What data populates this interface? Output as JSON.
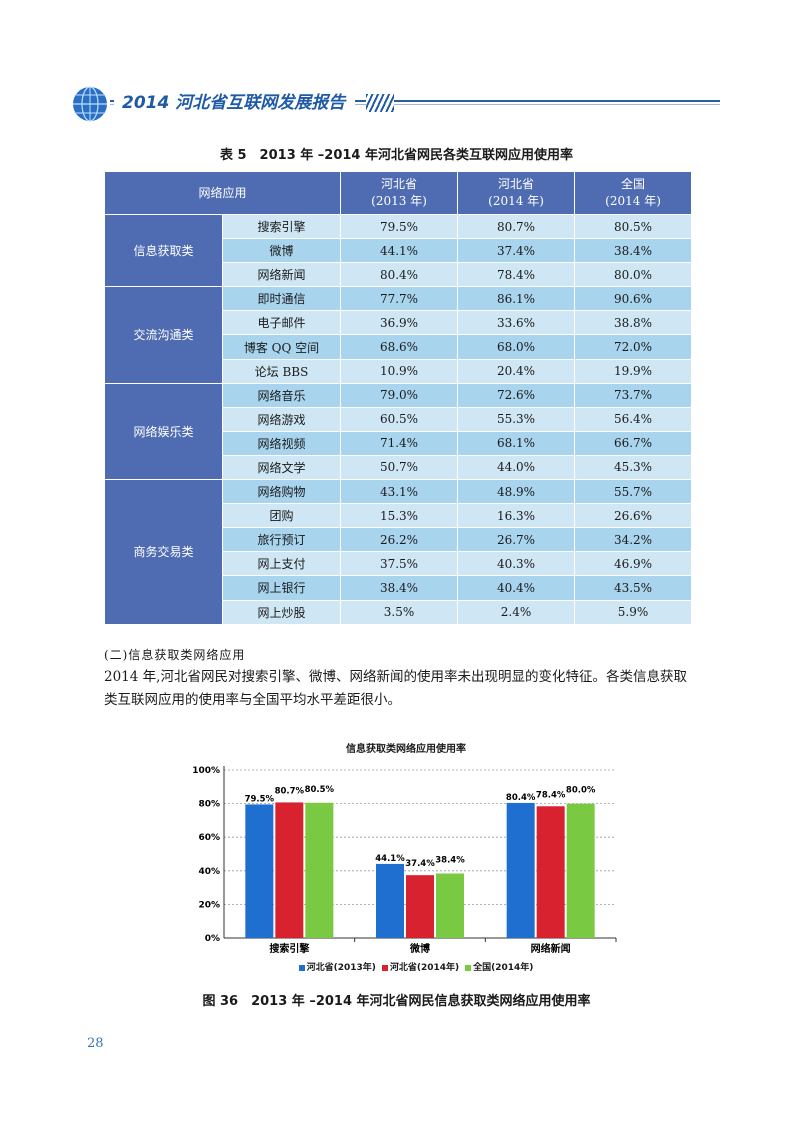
{
  "header": {
    "title": "2014 河北省互联网发展报告"
  },
  "table": {
    "caption": "表 5　2013 年 –2014 年河北省网民各类互联网应用使用率",
    "headers": {
      "app": "网络应用",
      "col1_line1": "河北省",
      "col1_line2": "(2013 年)",
      "col2_line1": "河北省",
      "col2_line2": "(2014 年)",
      "col3_line1": "全国",
      "col3_line2": "(2014 年)"
    },
    "groups": [
      {
        "category": "信息获取类",
        "rows": [
          {
            "app": "搜索引擎",
            "v2013": "79.5%",
            "v2014": "80.7%",
            "nat": "80.5%"
          },
          {
            "app": "微博",
            "v2013": "44.1%",
            "v2014": "37.4%",
            "nat": "38.4%"
          },
          {
            "app": "网络新闻",
            "v2013": "80.4%",
            "v2014": "78.4%",
            "nat": "80.0%"
          }
        ]
      },
      {
        "category": "交流沟通类",
        "rows": [
          {
            "app": "即时通信",
            "v2013": "77.7%",
            "v2014": "86.1%",
            "nat": "90.6%"
          },
          {
            "app": "电子邮件",
            "v2013": "36.9%",
            "v2014": "33.6%",
            "nat": "38.8%"
          },
          {
            "app": "博客 QQ 空间",
            "v2013": "68.6%",
            "v2014": "68.0%",
            "nat": "72.0%"
          },
          {
            "app": "论坛 BBS",
            "v2013": "10.9%",
            "v2014": "20.4%",
            "nat": "19.9%"
          }
        ]
      },
      {
        "category": "网络娱乐类",
        "rows": [
          {
            "app": "网络音乐",
            "v2013": "79.0%",
            "v2014": "72.6%",
            "nat": "73.7%"
          },
          {
            "app": "网络游戏",
            "v2013": "60.5%",
            "v2014": "55.3%",
            "nat": "56.4%"
          },
          {
            "app": "网络视频",
            "v2013": "71.4%",
            "v2014": "68.1%",
            "nat": "66.7%"
          },
          {
            "app": "网络文学",
            "v2013": "50.7%",
            "v2014": "44.0%",
            "nat": "45.3%"
          }
        ]
      },
      {
        "category": "商务交易类",
        "rows": [
          {
            "app": "网络购物",
            "v2013": "43.1%",
            "v2014": "48.9%",
            "nat": "55.7%"
          },
          {
            "app": "团购",
            "v2013": "15.3%",
            "v2014": "16.3%",
            "nat": "26.6%"
          },
          {
            "app": "旅行预订",
            "v2013": "26.2%",
            "v2014": "26.7%",
            "nat": "34.2%"
          },
          {
            "app": "网上支付",
            "v2013": "37.5%",
            "v2014": "40.3%",
            "nat": "46.9%"
          },
          {
            "app": "网上银行",
            "v2013": "38.4%",
            "v2014": "40.4%",
            "nat": "43.5%"
          },
          {
            "app": "网上炒股",
            "v2013": "3.5%",
            "v2014": "2.4%",
            "nat": "5.9%"
          }
        ]
      }
    ]
  },
  "section": {
    "heading": "(二)信息获取类网络应用",
    "paragraph": "2014 年,河北省网民对搜索引擎、微博、网络新闻的使用率未出现明显的变化特征。各类信息获取类互联网应用的使用率与全国平均水平差距很小。"
  },
  "chart_data": {
    "type": "bar",
    "title": "信息获取类网络应用使用率",
    "categories": [
      "搜索引擎",
      "微博",
      "网络新闻"
    ],
    "series": [
      {
        "name": "河北省(2013年)",
        "values": [
          79.5,
          44.1,
          80.4
        ],
        "color": "#1f6fd1"
      },
      {
        "name": "河北省(2014年)",
        "values": [
          80.7,
          37.4,
          78.4
        ],
        "color": "#d8222f"
      },
      {
        "name": "全国(2014年)",
        "values": [
          80.5,
          38.4,
          80.0
        ],
        "color": "#7ac943"
      }
    ],
    "data_labels": [
      [
        "79.5%",
        "44.1%",
        "80.4%"
      ],
      [
        "80.7%",
        "37.4%",
        "78.4%"
      ],
      [
        "80.5%",
        "38.4%",
        "80.0%"
      ]
    ],
    "yticks": [
      "0%",
      "20%",
      "40%",
      "60%",
      "80%",
      "100%"
    ],
    "ylim": [
      0,
      100
    ],
    "grid": true,
    "legend": "bottom"
  },
  "figure": {
    "caption": "图 36　2013 年 –2014 年河北省网民信息获取类网络应用使用率"
  },
  "page_number": "28"
}
